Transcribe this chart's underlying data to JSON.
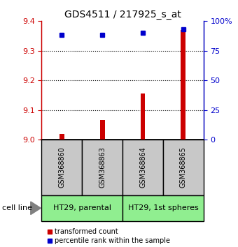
{
  "title": "GDS4511 / 217925_s_at",
  "samples": [
    "GSM368860",
    "GSM368863",
    "GSM368864",
    "GSM368865"
  ],
  "cell_lines": [
    "HT29, parental",
    "HT29, 1st spheres"
  ],
  "cell_line_spans": [
    [
      0,
      1
    ],
    [
      2,
      3
    ]
  ],
  "transformed_counts": [
    9.02,
    9.065,
    9.155,
    9.37
  ],
  "percentile_ranks": [
    88,
    88,
    90,
    93
  ],
  "ylim_left": [
    9.0,
    9.4
  ],
  "ylim_right": [
    0,
    100
  ],
  "yticks_left": [
    9.0,
    9.1,
    9.2,
    9.3,
    9.4
  ],
  "yticks_right": [
    0,
    25,
    50,
    75,
    100
  ],
  "ytick_labels_right": [
    "0",
    "25",
    "50",
    "75",
    "100%"
  ],
  "bar_color": "#cc0000",
  "dot_color": "#0000cc",
  "sample_box_color": "#c8c8c8",
  "cell_line_box_color": "#90ee90",
  "left_axis_color": "#cc0000",
  "right_axis_color": "#0000cc",
  "legend_bar_label": "transformed count",
  "legend_dot_label": "percentile rank within the sample",
  "cell_line_label": "cell line",
  "figsize": [
    3.4,
    3.54
  ],
  "dpi": 100,
  "bar_width": 0.12,
  "dot_size": 5,
  "grid_ticks": [
    9.1,
    9.2,
    9.3
  ]
}
